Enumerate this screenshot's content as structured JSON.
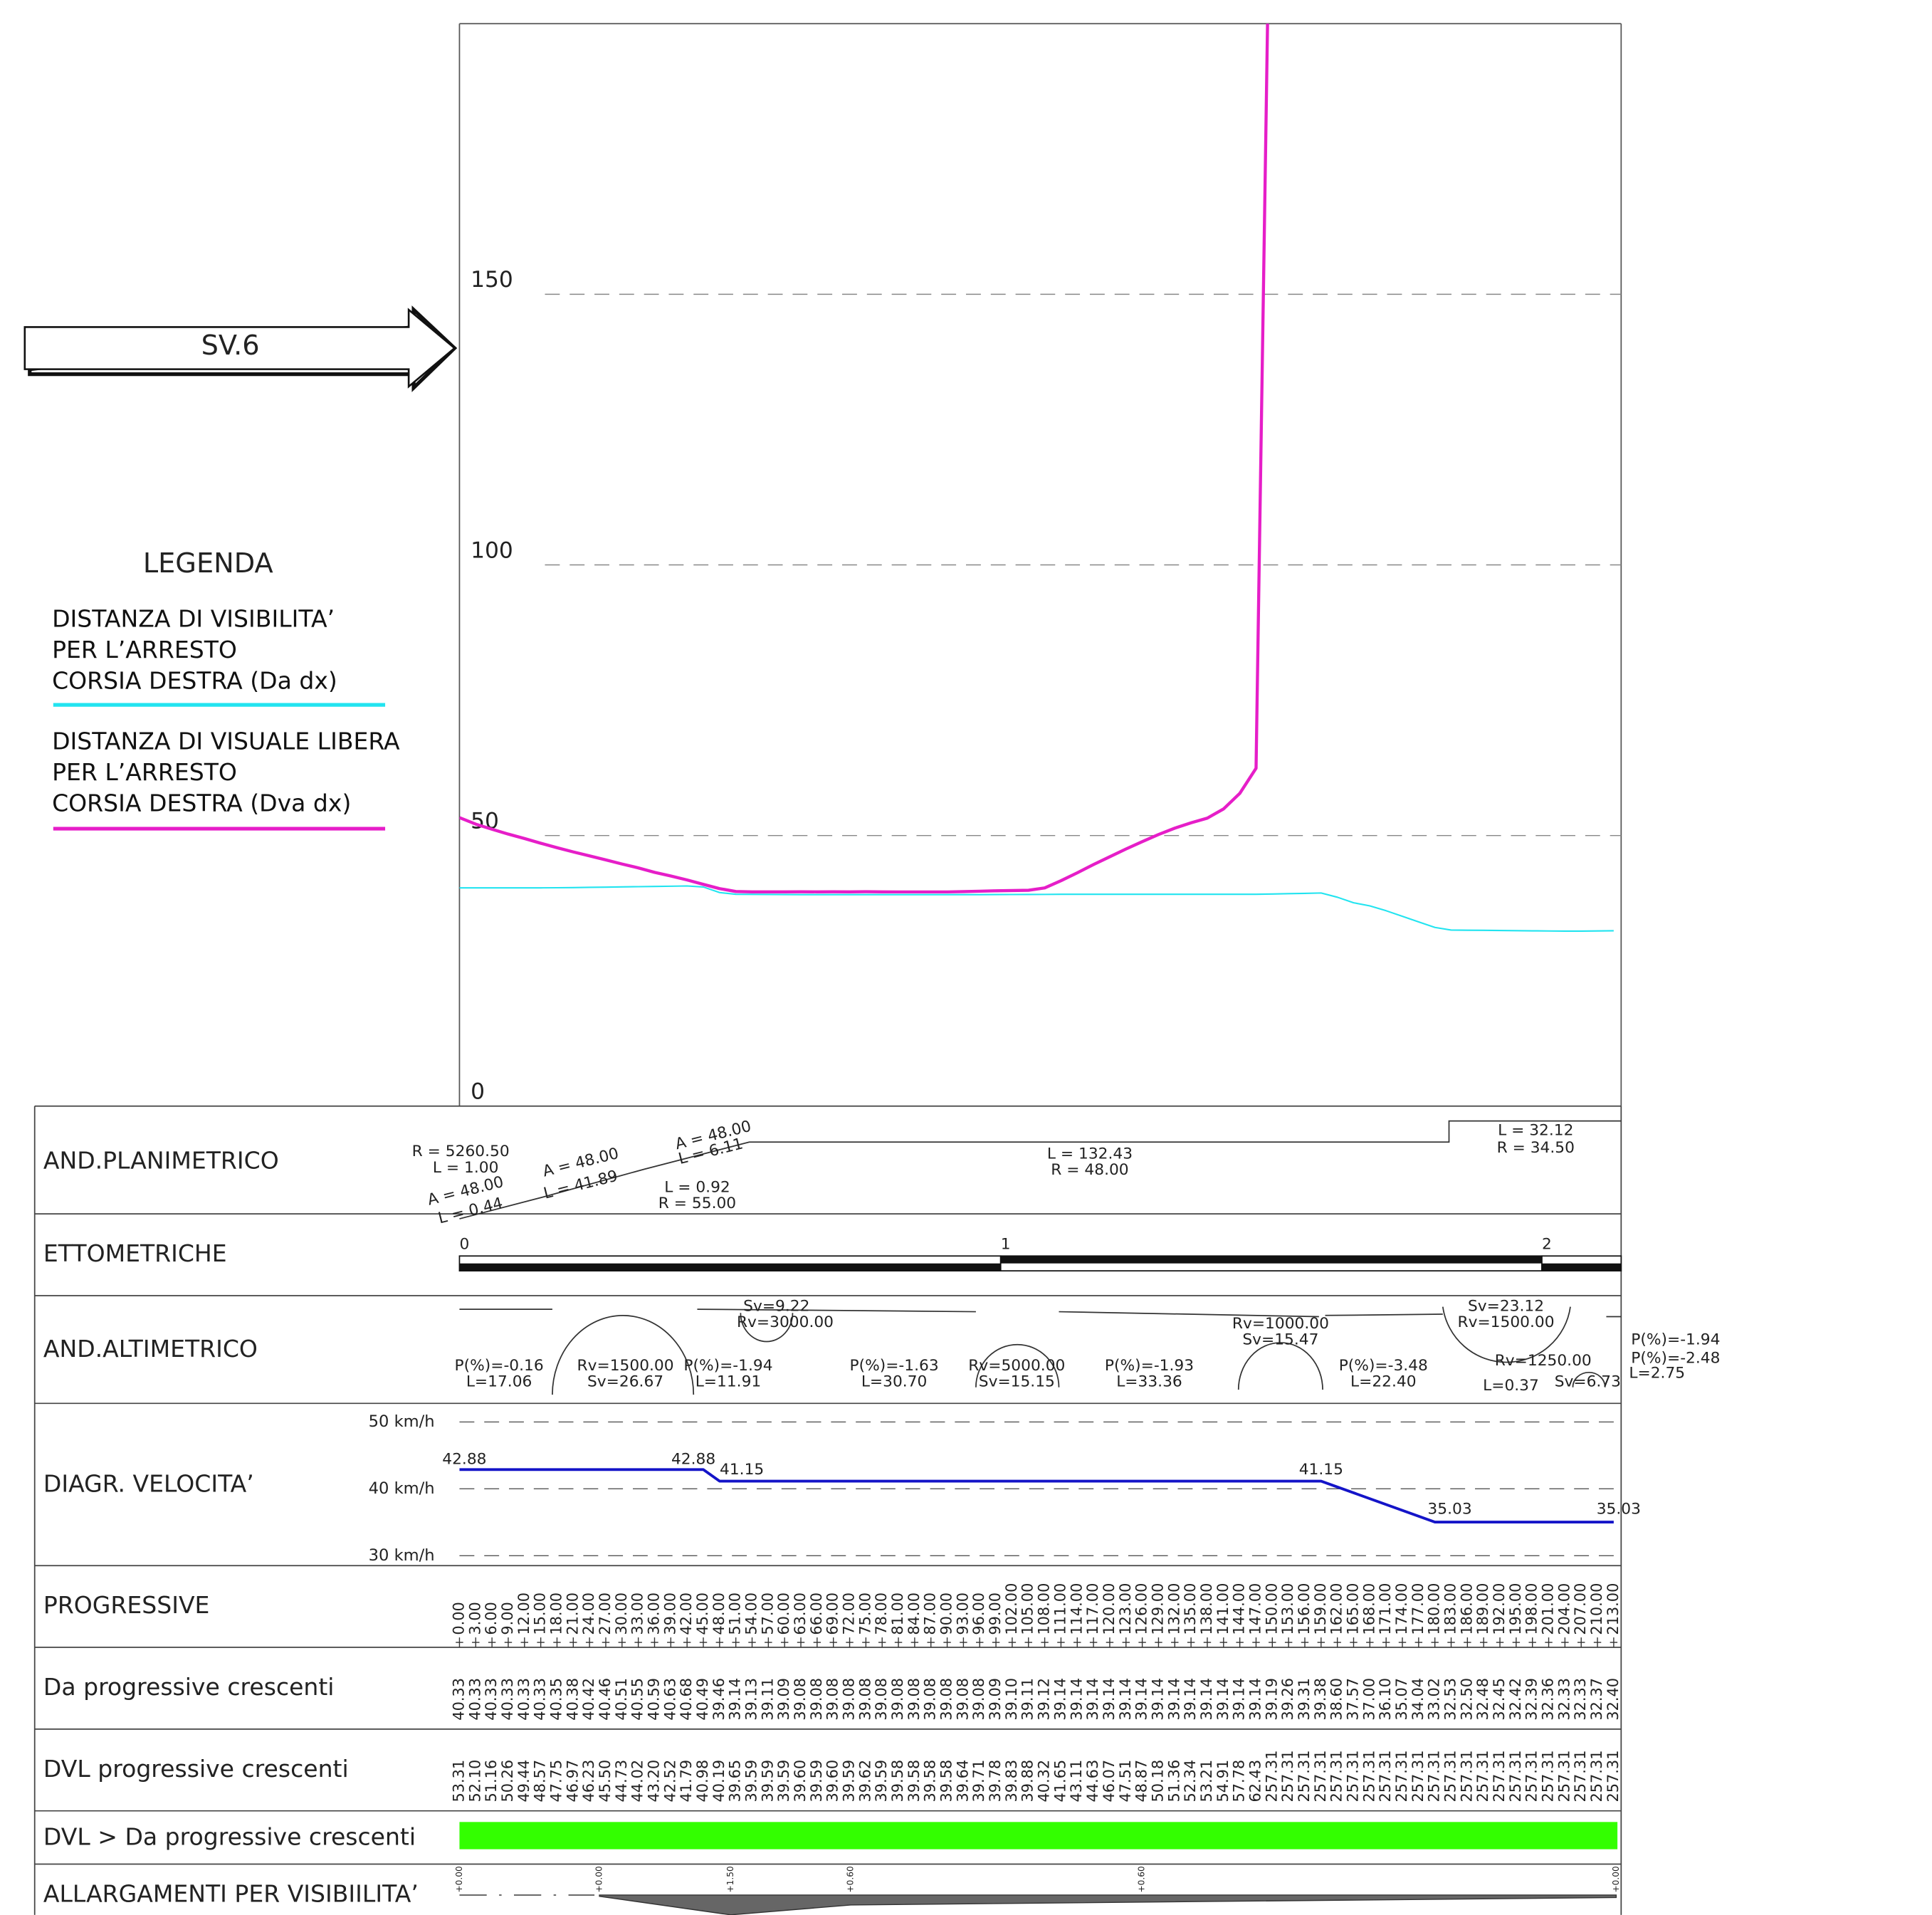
{
  "banner": "SV.6",
  "legend_title": "LEGENDA",
  "chart_data": [
    {
      "type": "line",
      "xlim": [
        0,
        213
      ],
      "ylim": [
        0,
        200
      ],
      "yticks": [
        0,
        50,
        100,
        150
      ],
      "grid": true,
      "x": [
        0,
        3,
        6,
        9,
        12,
        15,
        18,
        21,
        24,
        27,
        30,
        33,
        36,
        39,
        42,
        45,
        48,
        51,
        54,
        57,
        60,
        63,
        66,
        69,
        72,
        75,
        78,
        81,
        84,
        87,
        90,
        93,
        96,
        99,
        102,
        105,
        108,
        111,
        114,
        117,
        120,
        123,
        126,
        129,
        132,
        135,
        138,
        141,
        144,
        147,
        150,
        153,
        156,
        159,
        162,
        165,
        168,
        171,
        174,
        177,
        180,
        183,
        186,
        189,
        192,
        195,
        198,
        201,
        204,
        207,
        210,
        213
      ],
      "x_labels": [
        "0.00",
        "3.00",
        "6.00",
        "9.00",
        "12.00",
        "15.00",
        "18.00",
        "21.00",
        "24.00",
        "27.00",
        "30.00",
        "33.00",
        "36.00",
        "39.00",
        "42.00",
        "45.00",
        "48.00",
        "51.00",
        "54.00",
        "57.00",
        "60.00",
        "63.00",
        "66.00",
        "69.00",
        "72.00",
        "75.00",
        "78.00",
        "81.00",
        "84.00",
        "87.00",
        "90.00",
        "93.00",
        "96.00",
        "99.00",
        "102.00",
        "105.00",
        "108.00",
        "111.00",
        "114.00",
        "117.00",
        "120.00",
        "123.00",
        "126.00",
        "129.00",
        "132.00",
        "135.00",
        "138.00",
        "141.00",
        "144.00",
        "147.00",
        "150.00",
        "153.00",
        "156.00",
        "159.00",
        "162.00",
        "165.00",
        "168.00",
        "171.00",
        "174.00",
        "177.00",
        "180.00",
        "183.00",
        "186.00",
        "189.00",
        "192.00",
        "195.00",
        "198.00",
        "201.00",
        "204.00",
        "207.00",
        "210.00",
        "213.00"
      ],
      "series": [
        {
          "name": "DISTANZA DI VISIBILITA’\nPER L’ARRESTO\nCORSIA DESTRA (Da dx)",
          "color": "#22e4f0",
          "values": [
            40.33,
            40.33,
            40.33,
            40.33,
            40.33,
            40.33,
            40.35,
            40.38,
            40.42,
            40.46,
            40.51,
            40.55,
            40.59,
            40.63,
            40.68,
            40.49,
            39.46,
            39.14,
            39.13,
            39.11,
            39.09,
            39.08,
            39.08,
            39.08,
            39.08,
            39.08,
            39.08,
            39.08,
            39.08,
            39.08,
            39.08,
            39.08,
            39.08,
            39.09,
            39.1,
            39.11,
            39.12,
            39.14,
            39.14,
            39.14,
            39.14,
            39.14,
            39.14,
            39.14,
            39.14,
            39.14,
            39.14,
            39.14,
            39.14,
            39.14,
            39.19,
            39.26,
            39.31,
            39.38,
            38.6,
            37.57,
            37,
            36.1,
            35.07,
            34.04,
            33.02,
            32.53,
            32.5,
            32.48,
            32.45,
            32.42,
            32.39,
            32.36,
            32.33,
            32.33,
            32.37,
            32.4
          ],
          "value_labels": [
            "40.33",
            "40.33",
            "40.33",
            "40.33",
            "40.33",
            "40.33",
            "40.35",
            "40.38",
            "40.42",
            "40.46",
            "40.51",
            "40.55",
            "40.59",
            "40.63",
            "40.68",
            "40.49",
            "39.46",
            "39.14",
            "39.13",
            "39.11",
            "39.09",
            "39.08",
            "39.08",
            "39.08",
            "39.08",
            "39.08",
            "39.08",
            "39.08",
            "39.08",
            "39.08",
            "39.08",
            "39.08",
            "39.08",
            "39.09",
            "39.10",
            "39.11",
            "39.12",
            "39.14",
            "39.14",
            "39.14",
            "39.14",
            "39.14",
            "39.14",
            "39.14",
            "39.14",
            "39.14",
            "39.14",
            "39.14",
            "39.14",
            "39.14",
            "39.19",
            "39.26",
            "39.31",
            "39.38",
            "38.60",
            "37.57",
            "37.00",
            "36.10",
            "35.07",
            "34.04",
            "33.02",
            "32.53",
            "32.50",
            "32.48",
            "32.45",
            "32.42",
            "32.39",
            "32.36",
            "32.33",
            "32.33",
            "32.37",
            "32.40"
          ]
        },
        {
          "name": "DISTANZA DI VISUALE LIBERA\nPER L’ARRESTO\nCORSIA DESTRA (Dva dx)",
          "color": "#e61ec8",
          "values": [
            53.31,
            52.1,
            51.16,
            50.26,
            49.44,
            48.57,
            47.75,
            46.97,
            46.23,
            45.5,
            44.73,
            44.02,
            43.2,
            42.52,
            41.79,
            40.98,
            40.19,
            39.65,
            39.59,
            39.59,
            39.59,
            39.6,
            39.59,
            39.6,
            39.59,
            39.62,
            39.59,
            39.58,
            39.58,
            39.58,
            39.58,
            39.64,
            39.71,
            39.78,
            39.83,
            39.88,
            40.32,
            41.65,
            43.11,
            44.63,
            46.07,
            47.51,
            48.87,
            50.18,
            51.36,
            52.34,
            53.21,
            54.91,
            57.78,
            62.43,
            257.31,
            257.31,
            257.31,
            257.31,
            257.31,
            257.31,
            257.31,
            257.31,
            257.31,
            257.31,
            257.31,
            257.31,
            257.31,
            257.31,
            257.31,
            257.31,
            257.31,
            257.31,
            257.31,
            257.31,
            257.31,
            257.31
          ],
          "value_labels": [
            "53.31",
            "52.10",
            "51.16",
            "50.26",
            "49.44",
            "48.57",
            "47.75",
            "46.97",
            "46.23",
            "45.50",
            "44.73",
            "44.02",
            "43.20",
            "42.52",
            "41.79",
            "40.98",
            "40.19",
            "39.65",
            "39.59",
            "39.59",
            "39.59",
            "39.60",
            "39.59",
            "39.60",
            "39.59",
            "39.62",
            "39.59",
            "39.58",
            "39.58",
            "39.58",
            "39.58",
            "39.64",
            "39.71",
            "39.78",
            "39.83",
            "39.88",
            "40.32",
            "41.65",
            "43.11",
            "44.63",
            "46.07",
            "47.51",
            "48.87",
            "50.18",
            "51.36",
            "52.34",
            "53.21",
            "54.91",
            "57.78",
            "62.43",
            "257.31",
            "257.31",
            "257.31",
            "257.31",
            "257.31",
            "257.31",
            "257.31",
            "257.31",
            "257.31",
            "257.31",
            "257.31",
            "257.31",
            "257.31",
            "257.31",
            "257.31",
            "257.31",
            "257.31",
            "257.31",
            "257.31",
            "257.31",
            "257.31",
            "257.31"
          ]
        }
      ]
    },
    {
      "type": "line",
      "xlim": [
        0,
        213
      ],
      "ylim": [
        30,
        50
      ],
      "yticks": [
        {
          "value": 50,
          "label": "50 km/h"
        },
        {
          "value": 40,
          "label": "40 km/h"
        },
        {
          "value": 30,
          "label": "30 km/h"
        }
      ],
      "grid": true,
      "color": "#1414c8",
      "x": [
        0,
        45,
        48,
        159,
        180,
        213
      ],
      "values": [
        42.88,
        42.88,
        41.15,
        41.15,
        35.03,
        35.03
      ]
    }
  ],
  "table": {
    "row_labels": [
      "AND.PLANIMETRICO",
      "ETTOMETRICHE",
      "AND.ALTIMETRICO",
      "DIAGR. VELOCITA’",
      "PROGRESSIVE",
      "Da progressive crescenti",
      "DVL progressive crescenti",
      "DVL > Da progressive crescenti",
      "ALLARGAMENTI PER VISIBIILITA’"
    ],
    "planimetric": [
      "R = 5260.50",
      "L = 1.00",
      "A = 48.00",
      "L = 0.44",
      "A = 48.00",
      "L = 41.89",
      "A = 48.00",
      "L = 6.11",
      "L = 0.92",
      "R = 55.00",
      "L = 132.43",
      "R = 48.00",
      "L = 32.12",
      "R = 34.50"
    ],
    "ettometriche": [
      "0",
      "1",
      "2"
    ],
    "altimetric": [
      "P(%)=-0.16",
      "L=17.06",
      "Rv=1500.00",
      "Sv=26.67",
      "P(%)=-1.94",
      "L=11.91",
      "Sv=9.22",
      "Rv=3000.00",
      "P(%)=-1.63",
      "L=30.70",
      "Rv=5000.00",
      "Sv=15.15",
      "P(%)=-1.93",
      "L=33.36",
      "Rv=1000.00",
      "Sv=15.47",
      "P(%)=-3.48",
      "L=22.40",
      "Sv=23.12",
      "Rv=1500.00",
      "Rv=1250.00",
      "L=0.37",
      "Sv=6.73",
      "P(%)=-1.94",
      "P(%)=-2.48",
      "L=2.75"
    ],
    "allargamenti": [
      "+0.00",
      "+0.00",
      "+1.50",
      "+0.60",
      "+0.60",
      "+0.00"
    ]
  }
}
